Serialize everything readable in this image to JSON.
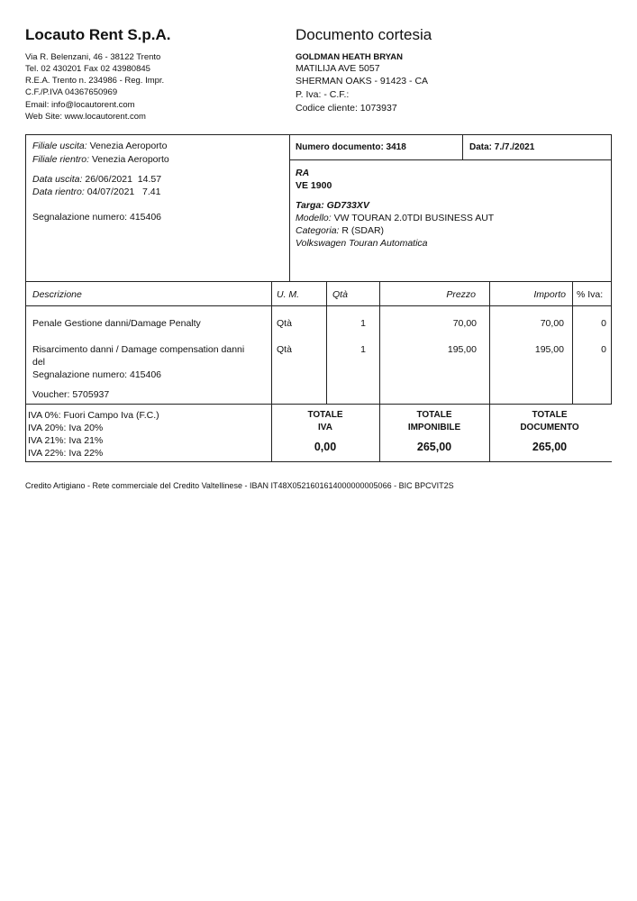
{
  "company": {
    "name": "Locauto Rent S.p.A.",
    "lines": [
      "Via R. Belenzani, 46 - 38122 Trento",
      "Tel. 02 430201 Fax 02 43980845",
      "R.E.A. Trento n. 234986 - Reg. Impr.",
      "C.F./P.IVA 04367650969",
      "Email: info@locautorent.com",
      "Web Site: www.locautorent.com"
    ]
  },
  "document": {
    "title": "Documento cortesia",
    "customer_name": "GOLDMAN HEATH BRYAN",
    "customer_lines": [
      "MATILIJA AVE 5057",
      "SHERMAN OAKS - 91423 - CA",
      "P. Iva:  - C.F.:",
      "Codice cliente: 1073937"
    ]
  },
  "rental": {
    "branch_out_label": "Filiale uscita:",
    "branch_out": "Venezia Aeroporto",
    "branch_in_label": "Filiale rientro:",
    "branch_in": "Venezia Aeroporto",
    "date_out_label": "Data uscita:",
    "date_out": "26/06/2021  14.57",
    "date_in_label": "Data rientro:",
    "date_in": "04/07/2021   7.41",
    "report": "Segnalazione numero: 415406"
  },
  "doc_header": {
    "number": "Numero documento: 3418",
    "date": "Data: 7./7./2021"
  },
  "vehicle": {
    "code1": "RA",
    "code2": "VE 1900",
    "plate_label": "Targa:",
    "plate": "GD733XV",
    "model_label": "Modello:",
    "model": "VW TOURAN 2.0TDI BUSINESS AUT",
    "category_label": "Categoria:",
    "category": "R (SDAR)",
    "description": "Volkswagen Touran Automatica"
  },
  "table": {
    "headers": [
      "Descrizione",
      "U. M.",
      "Qtà",
      "Prezzo",
      "Importo",
      "% Iva:"
    ],
    "rows": [
      {
        "desc": [
          "Penale Gestione danni/Damage Penalty"
        ],
        "um": "Qtà",
        "qty": "1",
        "price": "70,00",
        "amount": "70,00",
        "vat": "0"
      },
      {
        "desc": [
          "Risarcimento danni / Damage compensation danni",
          "del",
          "Segnalazione numero: 415406"
        ],
        "um": "Qtà",
        "qty": "1",
        "price": "195,00",
        "amount": "195,00",
        "vat": "0"
      }
    ],
    "voucher": "Voucher: 5705937"
  },
  "totals": {
    "vat_lines": [
      "IVA 0%: Fuori Campo Iva (F.C.)",
      "IVA 20%: Iva 20%",
      "IVA 21%: Iva 21%",
      "IVA 22%: Iva 22%"
    ],
    "iva": {
      "label1": "TOTALE",
      "label2": "IVA",
      "value": "0,00"
    },
    "imponibile": {
      "label1": "TOTALE",
      "label2": "IMPONIBILE",
      "value": "265,00"
    },
    "documento": {
      "label1": "TOTALE",
      "label2": "DOCUMENTO",
      "value": "265,00"
    }
  },
  "footer": "Credito Artigiano - Rete commerciale del Credito Valtellinese - IBAN IT48X0521601614000000005066 - BIC BPCVIT2S"
}
